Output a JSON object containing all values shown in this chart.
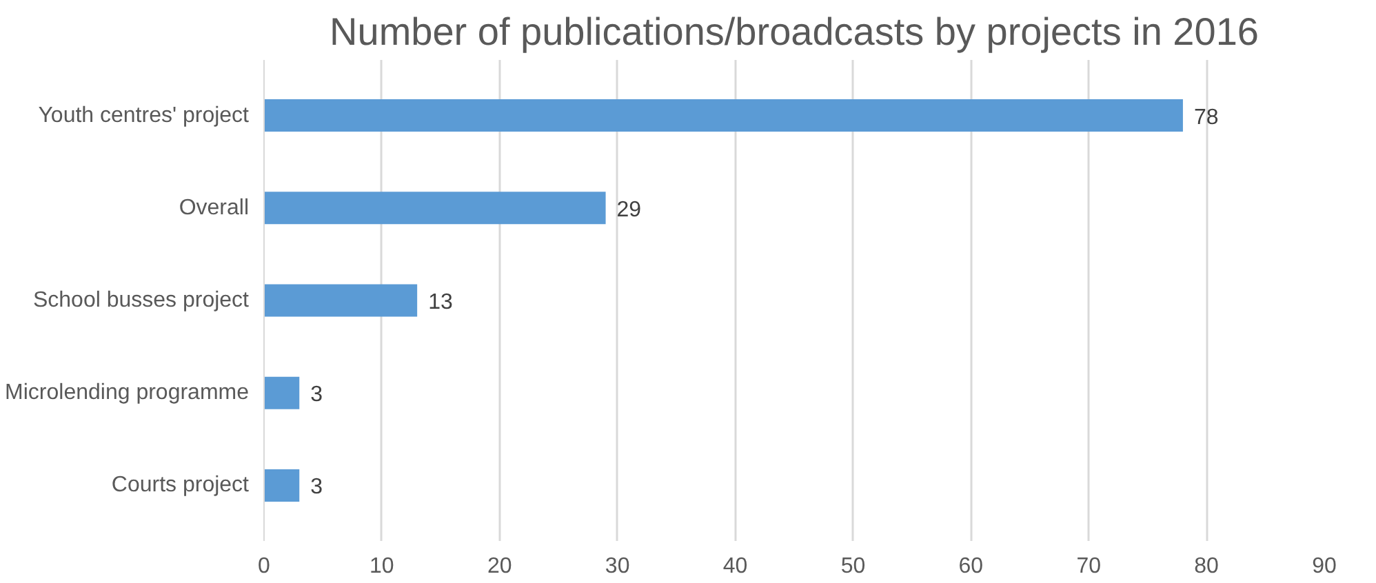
{
  "chart_data": {
    "type": "bar",
    "orientation": "horizontal",
    "title": "Number of publications/broadcasts by projects in 2016",
    "categories": [
      "Youth centres' project",
      "Overall",
      "School busses project",
      "Microlending programme",
      "Courts project"
    ],
    "values": [
      78,
      29,
      13,
      3,
      3
    ],
    "color": "#5b9bd5",
    "xlim": [
      0,
      90
    ],
    "xticks": [
      0,
      10,
      20,
      30,
      40,
      50,
      60,
      70,
      80,
      90
    ],
    "grid": "x",
    "data_labels": true
  }
}
